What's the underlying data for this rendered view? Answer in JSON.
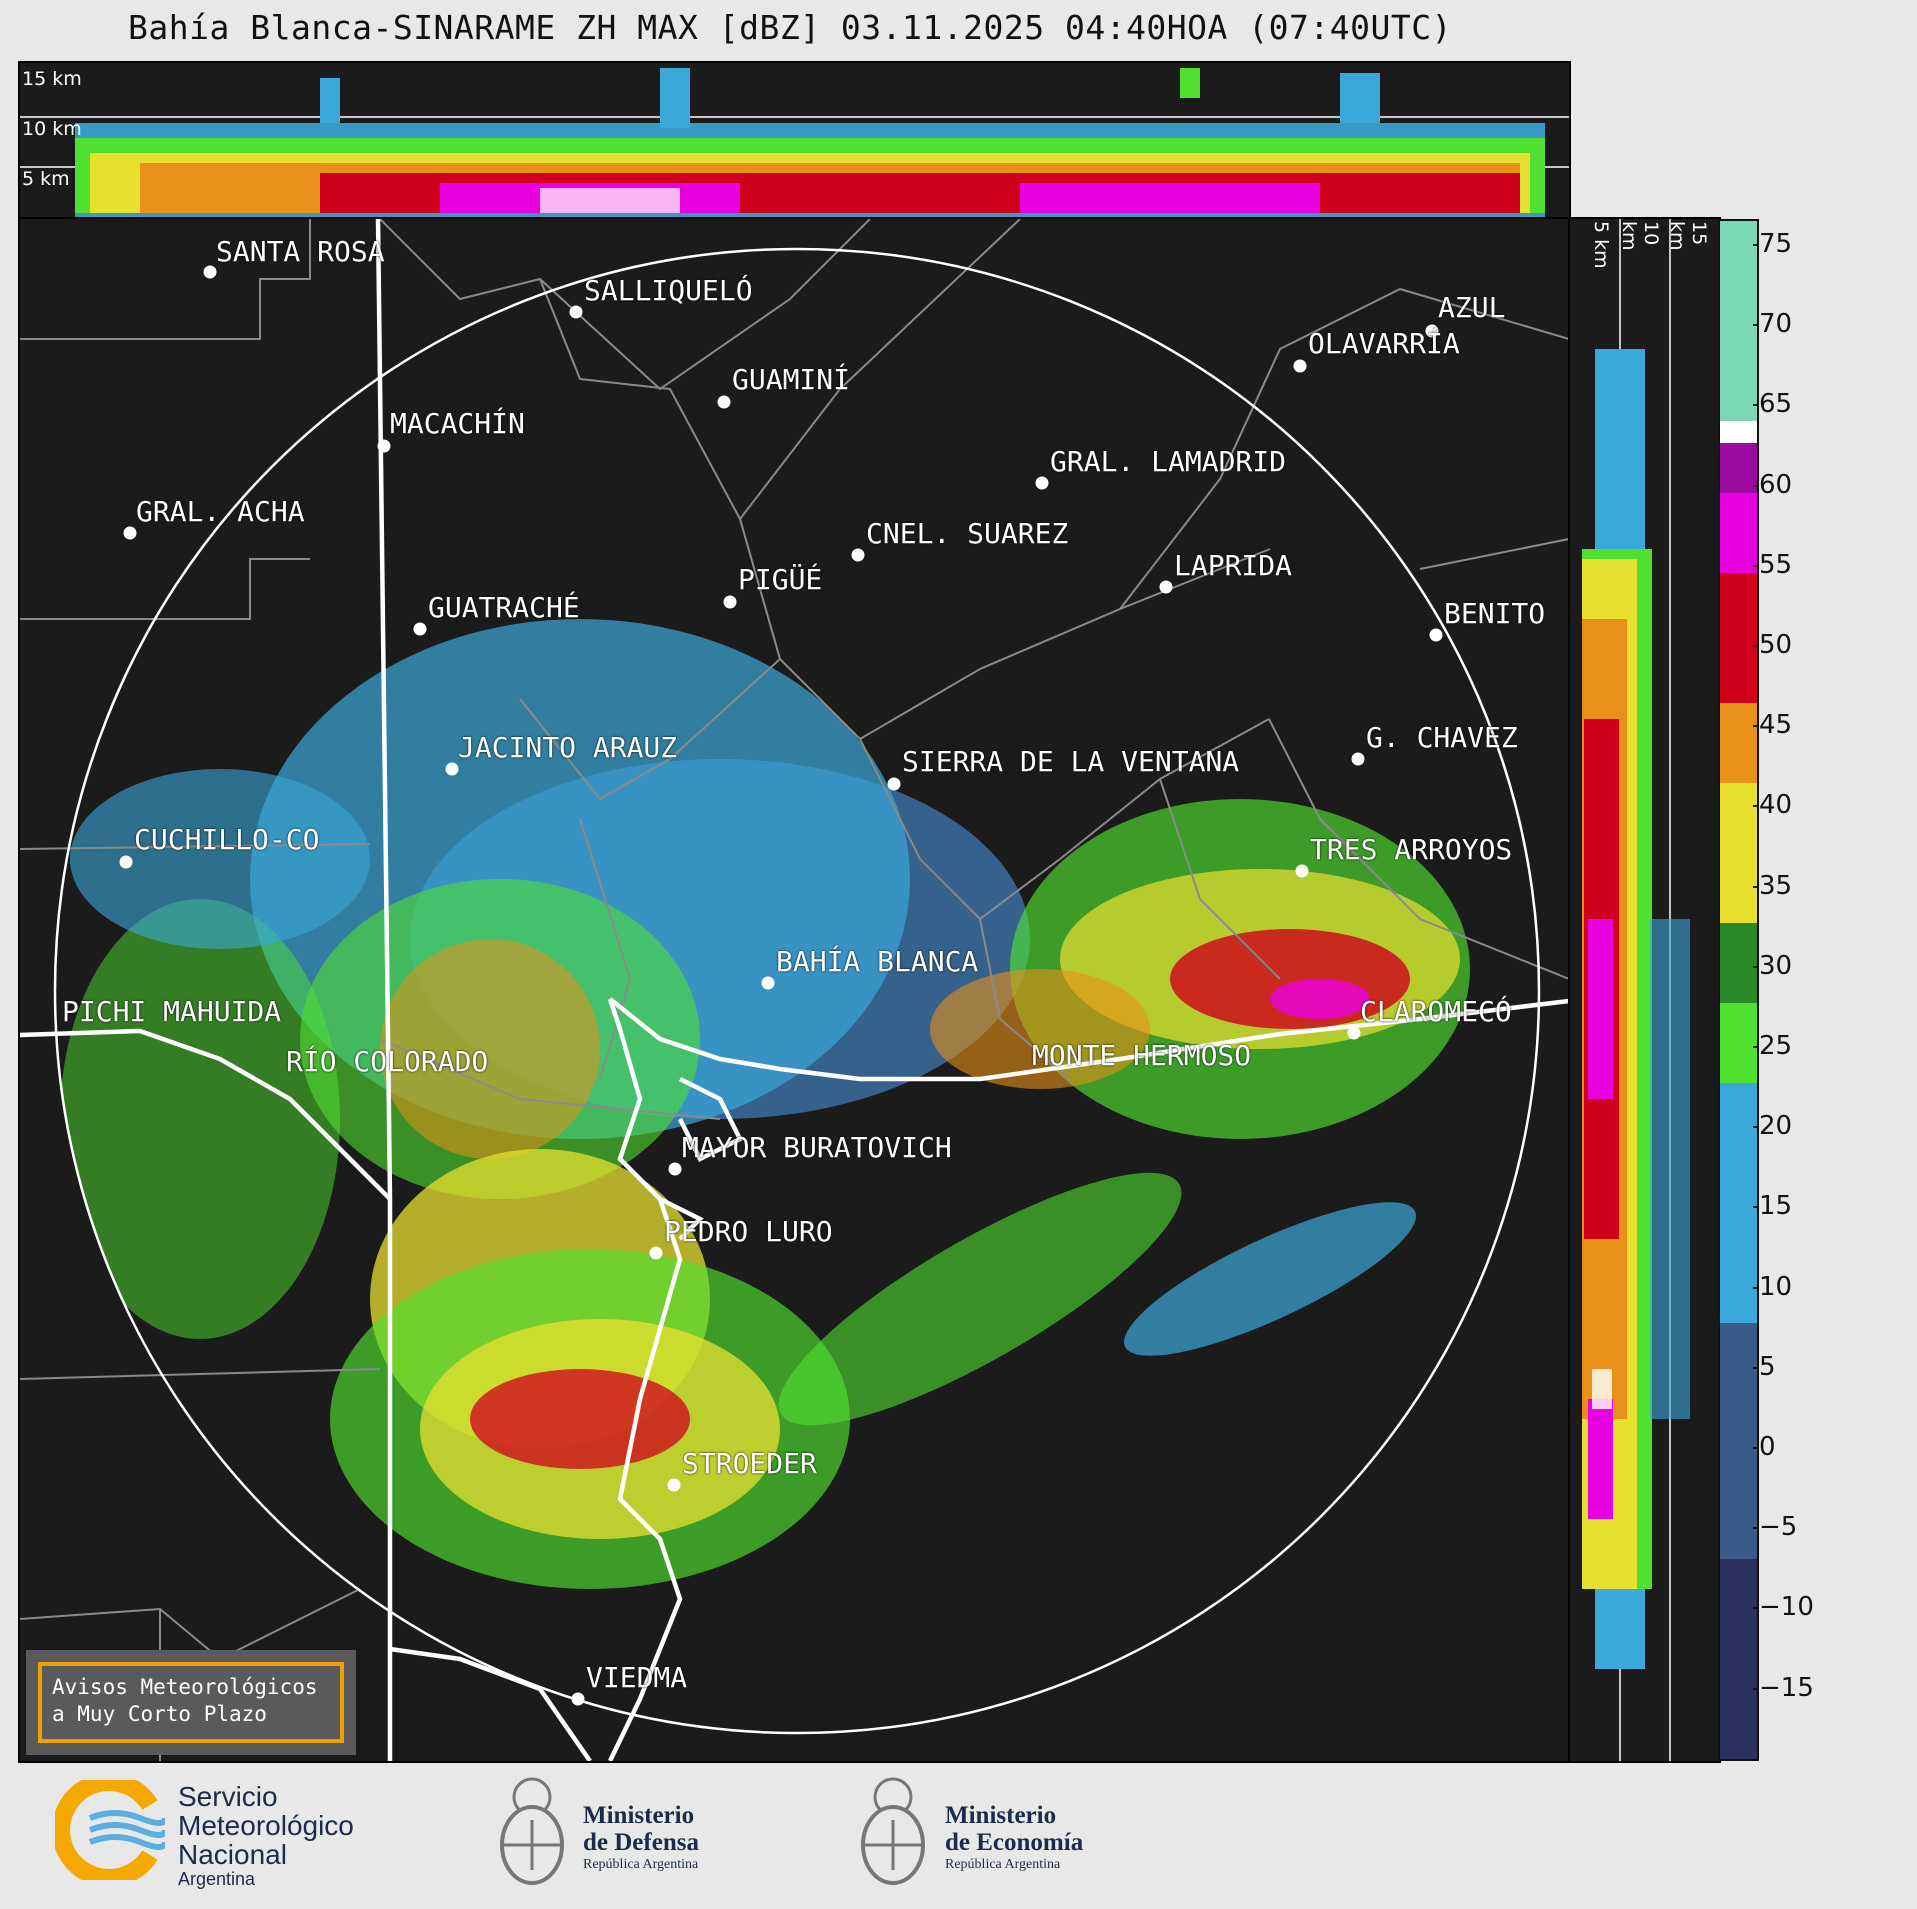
{
  "title": "Bahía Blanca-SINARAME ZH MAX [dBZ] 03.11.2025 04:40HOA (07:40UTC)",
  "top_panel_labels": [
    "15 km",
    "10 km",
    "5 km"
  ],
  "side_panel_labels": [
    "5 km",
    "10 km",
    "15 km"
  ],
  "colorbar": {
    "unit": "dBZ",
    "ticks": [
      "75",
      "70",
      "65",
      "60",
      "55",
      "50",
      "45",
      "40",
      "35",
      "30",
      "25",
      "20",
      "15",
      "10",
      "5",
      "0",
      "−5",
      "−10",
      "−15"
    ],
    "colors": {
      "teal": "#7ad8b4",
      "white": "#ffffff",
      "purple": "#9a0aa0",
      "magenta": "#e800e0",
      "red": "#d0001c",
      "orange": "#e89018",
      "yellow": "#e8e030",
      "green": "#2a8a2a",
      "lime": "#50e030",
      "blue": "#3aa8d8",
      "slate": "#3a5a8a",
      "navy": "#2a3060"
    }
  },
  "cities": [
    "SANTA ROSA",
    "SALLIQUELÓ",
    "AZUL",
    "OLAVARRÍA",
    "GUAMINÍ",
    "MACACHÍN",
    "GRAL. LAMADRID",
    "GRAL. ACHA",
    "CNEL. SUAREZ",
    "LAPRIDA",
    "PIGÜÉ",
    "GUATRACHÉ",
    "BENITO",
    "G. CHAVEZ",
    "JACINTO ARAUZ",
    "SIERRA DE LA VENTANA",
    "CUCHILLO-CO",
    "TRES ARROYOS",
    "BAHÍA BLANCA",
    "PICHI MAHUIDA",
    "CLAROMECÓ",
    "RÍO COLORADO",
    "MONTE HERMOSO",
    "MAYOR BURATOVICH",
    "PEDRO LURO",
    "STROEDER",
    "VIEDMA"
  ],
  "avisos": {
    "line1": "Avisos Meteorológicos",
    "line2": "a Muy Corto Plazo"
  },
  "logos": {
    "smn": {
      "line1": "Servicio",
      "line2": "Meteorológico",
      "line3": "Nacional",
      "line4": "Argentina"
    },
    "defensa": {
      "line1": "Ministerio",
      "line2": "de Defensa",
      "line3": "República Argentina"
    },
    "economia": {
      "line1": "Ministerio",
      "line2": "de Economía",
      "line3": "República Argentina"
    }
  }
}
